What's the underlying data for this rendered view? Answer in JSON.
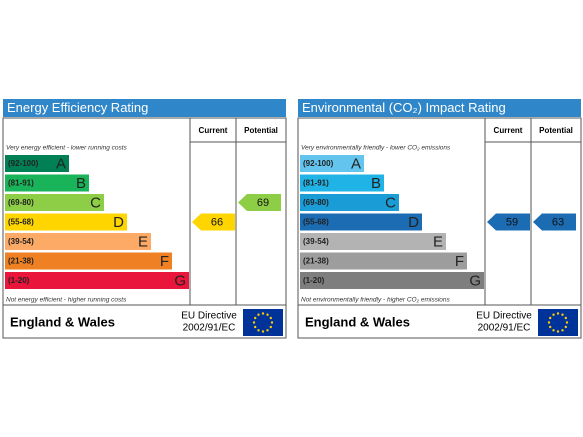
{
  "panels": [
    {
      "title": "Energy Efficiency Rating",
      "headers": [
        "Current",
        "Potential"
      ],
      "top_note": "Very energy efficient - lower running costs",
      "bands": [
        {
          "range": "(92-100)",
          "letter": "A",
          "color": "#008054"
        },
        {
          "range": "(81-91)",
          "letter": "B",
          "color": "#19b459"
        },
        {
          "range": "(69-80)",
          "letter": "C",
          "color": "#8dce46"
        },
        {
          "range": "(55-68)",
          "letter": "D",
          "color": "#ffd500"
        },
        {
          "range": "(39-54)",
          "letter": "E",
          "color": "#fcaa65"
        },
        {
          "range": "(21-38)",
          "letter": "F",
          "color": "#ef8023"
        },
        {
          "range": "(1-20)",
          "letter": "G",
          "color": "#e9153b"
        }
      ],
      "bottom_note": "Not energy efficient - higher running costs",
      "current": 66,
      "potential": 69,
      "region": "England & Wales",
      "directive": [
        "EU Directive",
        "2002/91/EC"
      ]
    },
    {
      "title": "Environmental (CO₂) Impact Rating",
      "headers": [
        "Current",
        "Potential"
      ],
      "top_note": "Very environmentally friendly - lower CO₂ emissions",
      "bands": [
        {
          "range": "(92-100)",
          "letter": "A",
          "color": "#63c4ee"
        },
        {
          "range": "(81-91)",
          "letter": "B",
          "color": "#1fb3e6"
        },
        {
          "range": "(69-80)",
          "letter": "C",
          "color": "#1a9cd7"
        },
        {
          "range": "(55-68)",
          "letter": "D",
          "color": "#1c6cb3"
        },
        {
          "range": "(39-54)",
          "letter": "E",
          "color": "#b3b3b3"
        },
        {
          "range": "(21-38)",
          "letter": "F",
          "color": "#9d9d9d"
        },
        {
          "range": "(1-20)",
          "letter": "G",
          "color": "#7e7e7e"
        }
      ],
      "bottom_note": "Not environmentally friendly - higher CO₂ emissions",
      "current": 59,
      "potential": 63,
      "region": "England & Wales",
      "directive": [
        "EU Directive",
        "2002/91/EC"
      ]
    }
  ]
}
